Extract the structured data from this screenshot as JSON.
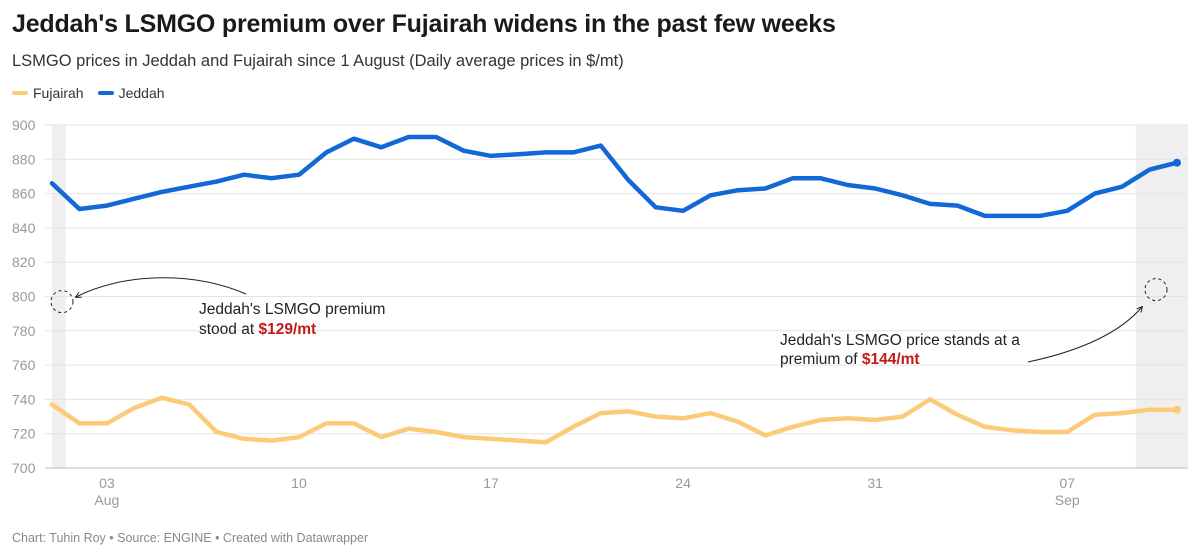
{
  "title": "Jeddah's LSMGO premium over Fujairah widens in the past few weeks",
  "subtitle": "LSMGO prices in Jeddah and Fujairah since 1 August (Daily average prices in $/mt)",
  "footer": "Chart: Tuhin Roy • Source: ENGINE • Created with Datawrapper",
  "colors": {
    "fujairah": "#fccb7a",
    "jeddah": "#1268d6",
    "highlight_red": "#c21a1a",
    "shade": "#efefef",
    "grid": "#e4e4e4"
  },
  "chart_data": {
    "type": "line",
    "ylim": [
      700,
      900
    ],
    "yticks": [
      700,
      720,
      740,
      760,
      780,
      800,
      820,
      840,
      860,
      880,
      900
    ],
    "grid": true,
    "legend_position": "top-left",
    "x": [
      "2023-08-01",
      "2023-08-02",
      "2023-08-03",
      "2023-08-04",
      "2023-08-05",
      "2023-08-06",
      "2023-08-07",
      "2023-08-08",
      "2023-08-09",
      "2023-08-10",
      "2023-08-11",
      "2023-08-12",
      "2023-08-13",
      "2023-08-14",
      "2023-08-15",
      "2023-08-16",
      "2023-08-17",
      "2023-08-18",
      "2023-08-19",
      "2023-08-20",
      "2023-08-21",
      "2023-08-22",
      "2023-08-23",
      "2023-08-24",
      "2023-08-25",
      "2023-08-26",
      "2023-08-27",
      "2023-08-28",
      "2023-08-29",
      "2023-08-30",
      "2023-08-31",
      "2023-09-01",
      "2023-09-02",
      "2023-09-03",
      "2023-09-04",
      "2023-09-05",
      "2023-09-06",
      "2023-09-07",
      "2023-09-08",
      "2023-09-09",
      "2023-09-10",
      "2023-09-11"
    ],
    "xticks": [
      {
        "date": "2023-08-03",
        "label": "03",
        "sublabel": "Aug"
      },
      {
        "date": "2023-08-10",
        "label": "10",
        "sublabel": ""
      },
      {
        "date": "2023-08-17",
        "label": "17",
        "sublabel": ""
      },
      {
        "date": "2023-08-24",
        "label": "24",
        "sublabel": ""
      },
      {
        "date": "2023-08-31",
        "label": "31",
        "sublabel": ""
      },
      {
        "date": "2023-09-07",
        "label": "07",
        "sublabel": "Sep"
      }
    ],
    "series": [
      {
        "name": "Fujairah",
        "color": "#fccb7a",
        "values": [
          737,
          726,
          726,
          735,
          741,
          737,
          721,
          717,
          716,
          718,
          726,
          726,
          718,
          723,
          721,
          718,
          717,
          716,
          715,
          724,
          732,
          733,
          730,
          729,
          732,
          727,
          719,
          724,
          728,
          729,
          728,
          730,
          740,
          731,
          724,
          722,
          721,
          721,
          731,
          732,
          734,
          734
        ]
      },
      {
        "name": "Jeddah",
        "color": "#1268d6",
        "values": [
          866,
          851,
          853,
          857,
          861,
          864,
          867,
          871,
          869,
          871,
          884,
          892,
          887,
          893,
          893,
          885,
          882,
          883,
          884,
          884,
          888,
          868,
          852,
          850,
          859,
          862,
          863,
          869,
          869,
          865,
          863,
          859,
          854,
          853,
          847,
          847,
          847,
          850,
          860,
          864,
          874,
          878
        ]
      }
    ],
    "shaded_ranges": [
      [
        "2023-08-01",
        "2023-08-01"
      ],
      [
        "2023-09-10",
        "2023-09-11"
      ]
    ],
    "annotations": [
      {
        "line1": "Jeddah's LSMGO premium",
        "line2_prefix": "stood at ",
        "highlight": "$129/mt",
        "date": "2023-08-01",
        "value": 797
      },
      {
        "line1": "Jeddah's LSMGO price stands at a",
        "line2_prefix": "premium of ",
        "highlight": "$144/mt",
        "date": "2023-09-11",
        "value": 804
      }
    ]
  }
}
